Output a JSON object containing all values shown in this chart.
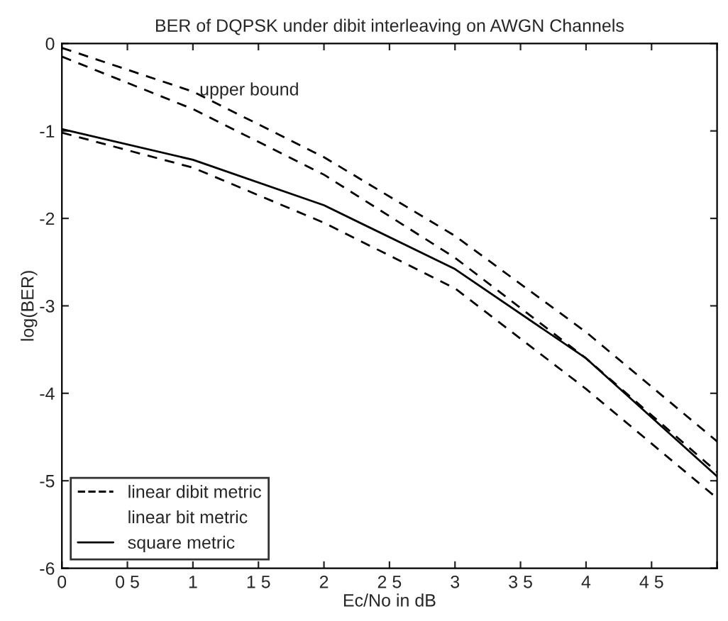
{
  "chart_data": {
    "type": "line",
    "title": "BER of DQPSK under dibit interleaving on AWGN Channels",
    "xlabel": "Ec/No in dB",
    "ylabel": "log(BER)",
    "x": [
      0,
      1,
      2,
      3,
      4,
      5
    ],
    "series": [
      {
        "name": "linear dibit metric",
        "color": "#000000",
        "line_style": "dashed",
        "values": [
          -1.02,
          -1.42,
          -2.05,
          -2.8,
          -3.95,
          -5.2
        ]
      },
      {
        "name": "linear bit metric",
        "color": "#000000",
        "line_style": "none",
        "values": [
          null,
          null,
          null,
          null,
          null,
          null
        ]
      },
      {
        "name": "square metric",
        "color": "#000000",
        "line_style": "solid",
        "values": [
          -0.98,
          -1.33,
          -1.85,
          -2.58,
          -3.6,
          -4.95
        ]
      },
      {
        "color": "#000000",
        "line_style": "dashed",
        "values": [
          -0.05,
          -0.55,
          -1.3,
          -2.2,
          -3.3,
          -4.55
        ]
      },
      {
        "color": "#000000",
        "line_style": "dashed",
        "values": [
          -0.15,
          -0.75,
          -1.5,
          -2.45,
          -3.6,
          -4.9
        ]
      }
    ],
    "annotations": [
      "upper bound"
    ],
    "xlim": [
      0,
      5
    ],
    "ylim": [
      -6,
      0
    ],
    "xticks": [
      0,
      {
        "value": 0.5,
        "label": "0 5"
      },
      1,
      {
        "value": 1.5,
        "label": "1 5"
      },
      2,
      {
        "value": 2.5,
        "label": "2 5"
      },
      3,
      {
        "value": 3.5,
        "label": "3 5"
      },
      4,
      {
        "value": 4.5,
        "label": "4 5"
      },
      {
        "value": 5,
        "label": null
      }
    ],
    "yticks": [
      -6,
      -5,
      -4,
      -3,
      -2,
      -1,
      0
    ],
    "grid": false,
    "legend": "bottom left"
  }
}
